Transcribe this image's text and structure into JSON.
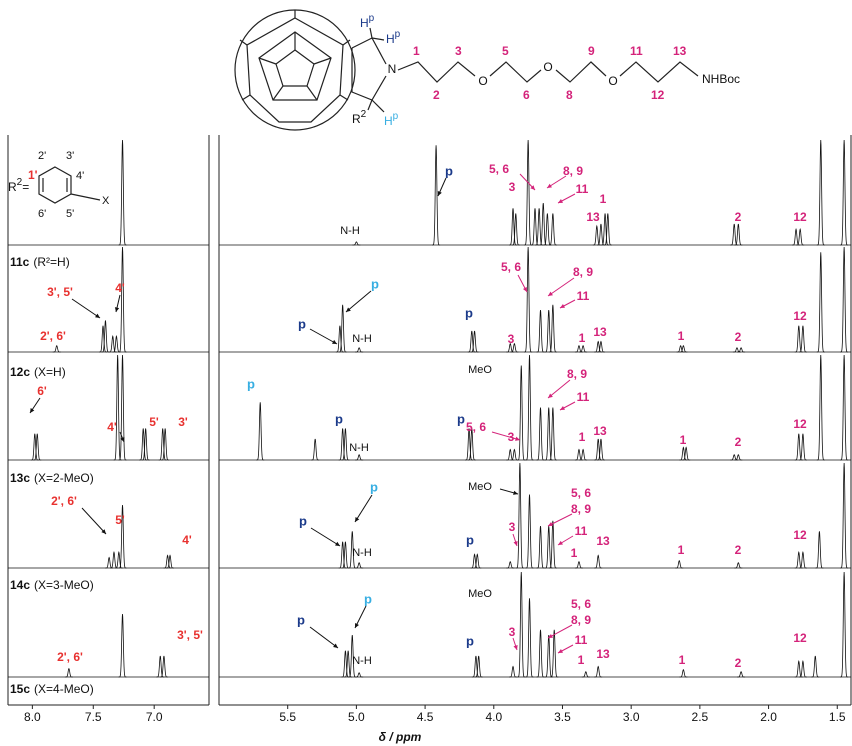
{
  "molecule": {
    "nitrogen": "N",
    "oxygens": [
      "O",
      "O",
      "O"
    ],
    "numbers": [
      "1",
      "2",
      "3",
      "5",
      "6",
      "8",
      "9",
      "11",
      "12",
      "13"
    ],
    "end_group": "NHBoc",
    "protons": [
      {
        "atom": "H",
        "sup": "p"
      },
      {
        "atom": "H",
        "sup": "p"
      },
      {
        "atom": "H",
        "sup": "p"
      }
    ],
    "r_group": {
      "atom": "R",
      "sup": "2"
    }
  },
  "substituent": {
    "atom": "R",
    "sup": "2",
    "equals": "=",
    "numbers": [
      "1'",
      "2'",
      "3'",
      "4'",
      "5'",
      "6'"
    ],
    "x": "X"
  },
  "spectra": {
    "xlabel": "δ / ppm",
    "xticks": [
      {
        "value": 8,
        "label": "8.0"
      },
      7.5,
      {
        "value": 7,
        "label": "7.0"
      },
      5.5,
      {
        "value": 5,
        "label": "5.0"
      },
      4.5,
      {
        "value": 4,
        "label": "4.0"
      },
      3.5,
      {
        "value": 3,
        "label": "3.0"
      },
      2.5,
      {
        "value": 2,
        "label": "2.0"
      },
      1.5
    ],
    "xlim": [
      [
        8.2,
        6.55
      ],
      [
        6.0,
        1.4
      ]
    ],
    "traces": [
      {
        "id": "11c",
        "detail": "(R²=H)",
        "annotations": [
          "p",
          "N-H",
          "3",
          "5, 6",
          "8, 9",
          "11",
          "1",
          "13",
          "2",
          "12"
        ],
        "peaks": [
          [
            7.26,
            1.0
          ],
          [
            5.0,
            0.03
          ],
          [
            4.42,
            0.95
          ],
          [
            3.86,
            0.35
          ],
          [
            3.84,
            0.3
          ],
          [
            3.75,
            1.0
          ],
          [
            3.7,
            0.35
          ],
          [
            3.67,
            0.35
          ],
          [
            3.64,
            0.4
          ],
          [
            3.61,
            0.3
          ],
          [
            3.57,
            0.3
          ],
          [
            3.25,
            0.18
          ],
          [
            3.22,
            0.2
          ],
          [
            3.19,
            0.3
          ],
          [
            3.17,
            0.3
          ],
          [
            2.25,
            0.2
          ],
          [
            2.22,
            0.2
          ],
          [
            1.8,
            0.15
          ],
          [
            1.77,
            0.15
          ],
          [
            1.62,
            1.0
          ],
          [
            1.45,
            1.0
          ]
        ]
      },
      {
        "id": "12c",
        "detail": "(X=H)",
        "annotations": [
          "2', 6'",
          "3', 5'",
          "4'",
          "p",
          "p",
          "N-H",
          "p",
          "3",
          "5, 6",
          "8, 9",
          "11",
          "1",
          "13",
          "1",
          "2",
          "12"
        ],
        "peaks": [
          [
            7.8,
            0.06
          ],
          [
            7.42,
            0.25
          ],
          [
            7.4,
            0.3
          ],
          [
            7.34,
            0.15
          ],
          [
            7.31,
            0.15
          ],
          [
            7.26,
            1.0
          ],
          [
            5.12,
            0.25
          ],
          [
            5.1,
            0.45
          ],
          [
            4.98,
            0.04
          ],
          [
            4.16,
            0.2
          ],
          [
            4.14,
            0.2
          ],
          [
            3.88,
            0.08
          ],
          [
            3.85,
            0.08
          ],
          [
            3.75,
            1.0
          ],
          [
            3.66,
            0.4
          ],
          [
            3.6,
            0.4
          ],
          [
            3.57,
            0.45
          ],
          [
            3.38,
            0.06
          ],
          [
            3.35,
            0.06
          ],
          [
            3.24,
            0.1
          ],
          [
            3.22,
            0.1
          ],
          [
            2.64,
            0.06
          ],
          [
            2.62,
            0.06
          ],
          [
            2.23,
            0.04
          ],
          [
            2.2,
            0.04
          ],
          [
            1.78,
            0.25
          ],
          [
            1.75,
            0.25
          ],
          [
            1.62,
            0.95
          ],
          [
            1.45,
            1.0
          ]
        ]
      },
      {
        "id": "13c",
        "detail": "(X=2-MeO)",
        "annotations": [
          "6'",
          "4'",
          "5'",
          "3'",
          "p",
          "p",
          "N-H",
          "p",
          "MeO",
          "5, 6",
          "3",
          "8, 9",
          "11",
          "1",
          "13",
          "1",
          "2",
          "12"
        ],
        "peaks": [
          [
            7.98,
            0.25
          ],
          [
            7.96,
            0.25
          ],
          [
            7.3,
            1.0
          ],
          [
            7.26,
            1.0
          ],
          [
            7.09,
            0.3
          ],
          [
            7.07,
            0.3
          ],
          [
            6.93,
            0.3
          ],
          [
            6.91,
            0.3
          ],
          [
            5.7,
            0.55
          ],
          [
            5.3,
            0.2
          ],
          [
            5.1,
            0.3
          ],
          [
            5.08,
            0.3
          ],
          [
            4.98,
            0.05
          ],
          [
            4.18,
            0.3
          ],
          [
            4.16,
            0.3
          ],
          [
            3.88,
            0.1
          ],
          [
            3.85,
            0.1
          ],
          [
            3.8,
            0.9
          ],
          [
            3.74,
            1.0
          ],
          [
            3.66,
            0.5
          ],
          [
            3.6,
            0.5
          ],
          [
            3.57,
            0.5
          ],
          [
            3.38,
            0.1
          ],
          [
            3.35,
            0.1
          ],
          [
            3.24,
            0.2
          ],
          [
            3.22,
            0.2
          ],
          [
            2.62,
            0.12
          ],
          [
            2.6,
            0.12
          ],
          [
            2.25,
            0.05
          ],
          [
            2.22,
            0.05
          ],
          [
            1.78,
            0.25
          ],
          [
            1.75,
            0.25
          ],
          [
            1.62,
            1.0
          ],
          [
            1.45,
            1.0
          ]
        ]
      },
      {
        "id": "14c",
        "detail": "(X=3-MeO)",
        "annotations": [
          "2', 6'",
          "5'",
          "4'",
          "p",
          "p",
          "N-H",
          "p",
          "MeO",
          "3",
          "5, 6",
          "8, 9",
          "11",
          "1",
          "13",
          "1",
          "2",
          "12"
        ],
        "peaks": [
          [
            7.37,
            0.1
          ],
          [
            7.33,
            0.15
          ],
          [
            7.29,
            0.15
          ],
          [
            7.26,
            0.6
          ],
          [
            6.89,
            0.12
          ],
          [
            6.87,
            0.12
          ],
          [
            5.1,
            0.25
          ],
          [
            5.08,
            0.25
          ],
          [
            5.03,
            0.35
          ],
          [
            4.98,
            0.05
          ],
          [
            4.14,
            0.13
          ],
          [
            4.12,
            0.13
          ],
          [
            3.88,
            0.06
          ],
          [
            3.81,
            1.0
          ],
          [
            3.74,
            0.7
          ],
          [
            3.66,
            0.4
          ],
          [
            3.6,
            0.4
          ],
          [
            3.57,
            0.45
          ],
          [
            3.38,
            0.06
          ],
          [
            3.24,
            0.12
          ],
          [
            2.65,
            0.07
          ],
          [
            2.22,
            0.05
          ],
          [
            1.78,
            0.15
          ],
          [
            1.75,
            0.15
          ],
          [
            1.63,
            0.35
          ],
          [
            1.45,
            1.0
          ]
        ]
      },
      {
        "id": "15c",
        "detail": "(X=4-MeO)",
        "annotations": [
          "2', 6'",
          "3', 5'",
          "p",
          "p",
          "N-H",
          "p",
          "MeO",
          "3",
          "5, 6",
          "8, 9",
          "11",
          "1",
          "13",
          "1",
          "2",
          "12"
        ],
        "peaks": [
          [
            7.7,
            0.08
          ],
          [
            7.26,
            0.6
          ],
          [
            6.95,
            0.2
          ],
          [
            6.92,
            0.2
          ],
          [
            5.08,
            0.25
          ],
          [
            5.06,
            0.25
          ],
          [
            5.03,
            0.4
          ],
          [
            4.98,
            0.04
          ],
          [
            4.13,
            0.2
          ],
          [
            4.11,
            0.2
          ],
          [
            3.86,
            0.1
          ],
          [
            3.8,
            1.0
          ],
          [
            3.74,
            0.75
          ],
          [
            3.66,
            0.45
          ],
          [
            3.6,
            0.4
          ],
          [
            3.56,
            0.45
          ],
          [
            3.33,
            0.05
          ],
          [
            3.24,
            0.1
          ],
          [
            2.62,
            0.07
          ],
          [
            2.2,
            0.05
          ],
          [
            1.78,
            0.15
          ],
          [
            1.75,
            0.15
          ],
          [
            1.66,
            0.2
          ],
          [
            1.45,
            1.0
          ]
        ]
      }
    ]
  }
}
